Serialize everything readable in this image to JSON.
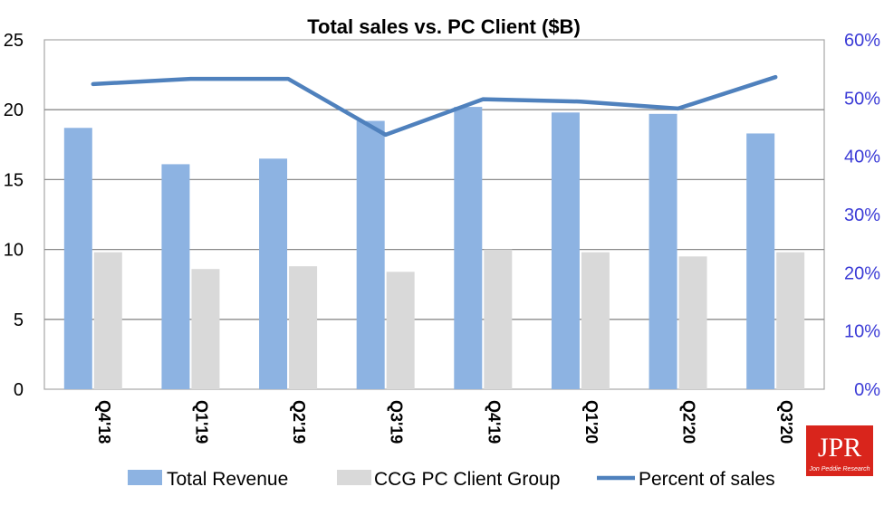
{
  "chart_data": {
    "type": "bar",
    "title": "Total sales vs. PC Client ($B)",
    "categories": [
      "Q4'18",
      "Q1'19",
      "Q2'19",
      "Q3'19",
      "Q4'19",
      "Q1'20",
      "Q2'20",
      "Q3'20"
    ],
    "series": [
      {
        "name": "Total Revenue",
        "type": "bar",
        "axis": "left",
        "color": "#8db3e2",
        "values": [
          18.7,
          16.1,
          16.5,
          19.2,
          20.2,
          19.8,
          19.7,
          18.3
        ]
      },
      {
        "name": "CCG PC Client Group",
        "type": "bar",
        "axis": "left",
        "color": "#d9d9d9",
        "values": [
          9.8,
          8.6,
          8.8,
          8.4,
          10.0,
          9.8,
          9.5,
          9.8
        ]
      },
      {
        "name": "Percent of sales",
        "type": "line",
        "axis": "right",
        "color": "#4f81bd",
        "values": [
          52.4,
          53.3,
          53.3,
          43.7,
          49.8,
          49.4,
          48.2,
          53.6
        ]
      }
    ],
    "ylim_left": [
      0,
      25
    ],
    "yticks_left": [
      "0",
      "5",
      "10",
      "15",
      "20",
      "25"
    ],
    "ylim_right": [
      0,
      60
    ],
    "yticks_right": [
      "0%",
      "10%",
      "20%",
      "30%",
      "40%",
      "50%",
      "60%"
    ],
    "right_axis_color": "#3b3bd6",
    "grid": true,
    "legend_position": "bottom"
  },
  "logo": {
    "text": "JPR",
    "subtext": "Jon Peddie Research",
    "color": "#d9251c"
  }
}
